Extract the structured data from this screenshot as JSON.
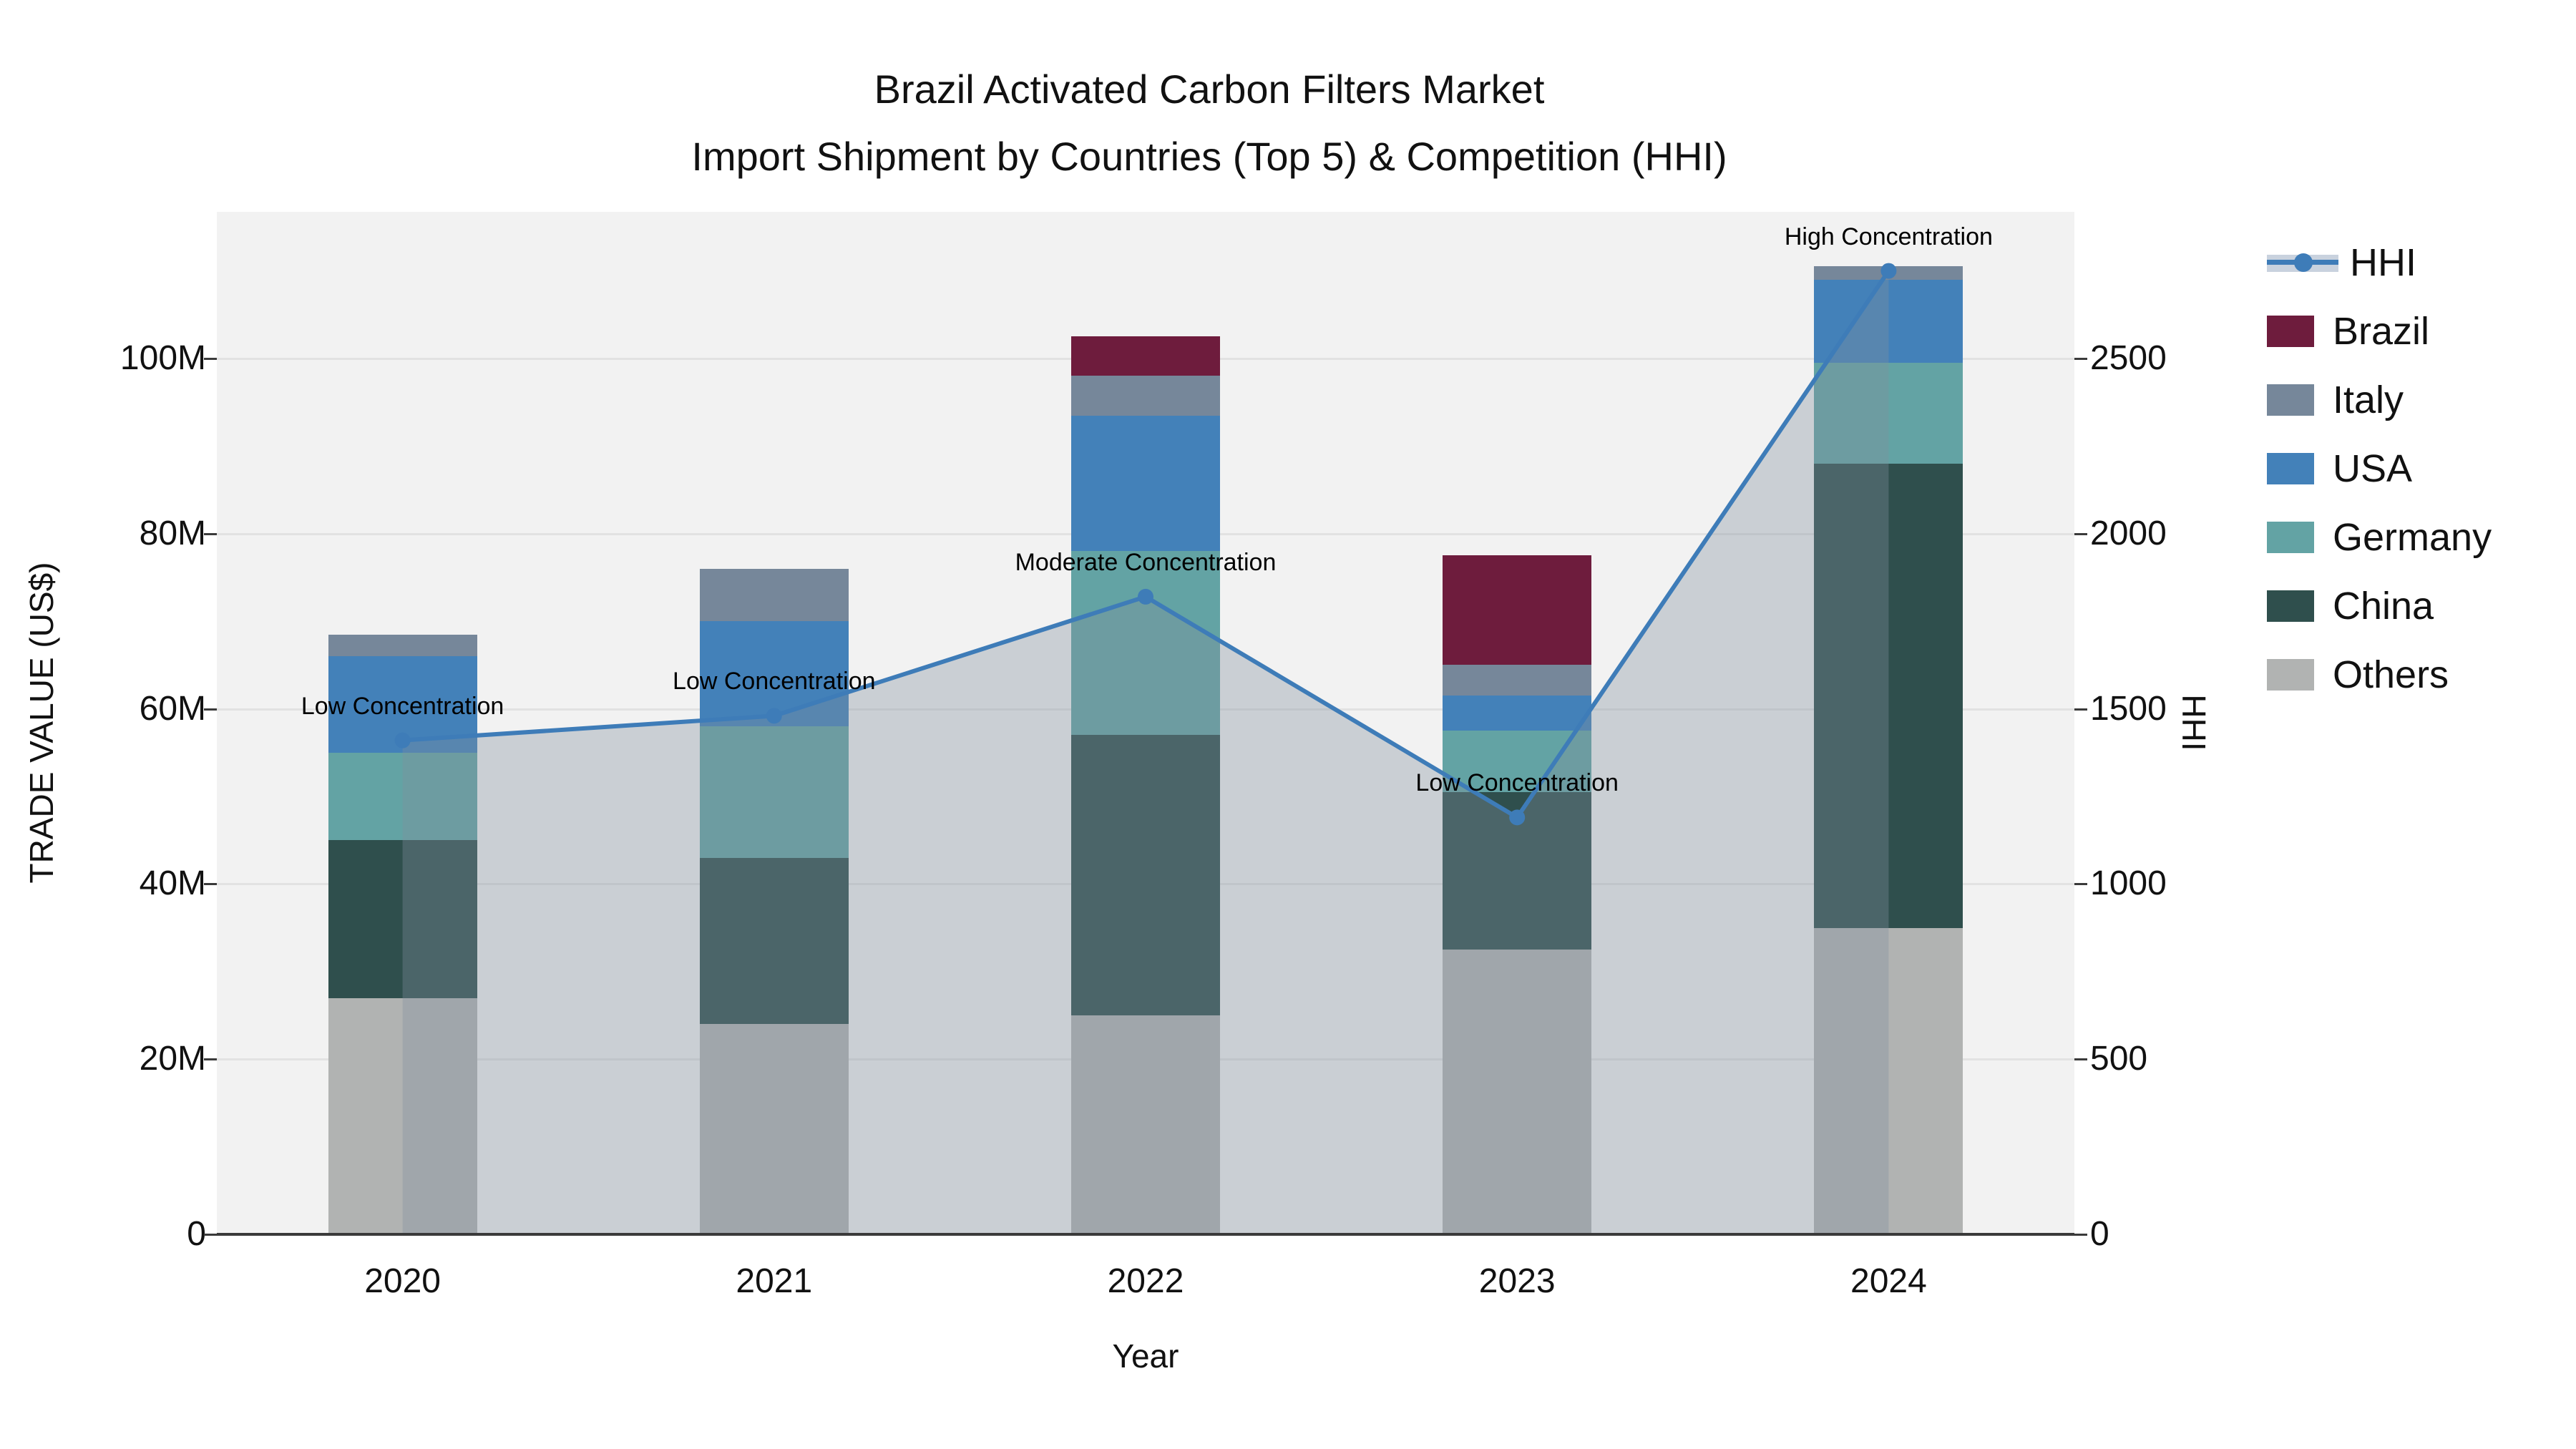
{
  "title": {
    "line1": "Brazil Activated Carbon Filters Market",
    "line2": "Import Shipment by Countries (Top 5) & Competition (HHI)"
  },
  "axes": {
    "y_left": {
      "label": "TRADE VALUE (US$)",
      "ticks": [
        {
          "value": 0,
          "text": "0"
        },
        {
          "value": 20,
          "text": "20M"
        },
        {
          "value": 40,
          "text": "40M"
        },
        {
          "value": 60,
          "text": "60M"
        },
        {
          "value": 80,
          "text": "80M"
        },
        {
          "value": 100,
          "text": "100M"
        }
      ]
    },
    "y_right": {
      "label": "HHI",
      "ticks": [
        {
          "value": 0,
          "text": "0"
        },
        {
          "value": 500,
          "text": "500"
        },
        {
          "value": 1000,
          "text": "1000"
        },
        {
          "value": 1500,
          "text": "1500"
        },
        {
          "value": 2000,
          "text": "2000"
        },
        {
          "value": 2500,
          "text": "2500"
        }
      ]
    },
    "x": {
      "label": "Year"
    }
  },
  "legend": {
    "items": [
      {
        "label": "HHI",
        "type": "line",
        "color": "#3e7cb8"
      },
      {
        "label": "Brazil",
        "type": "swatch",
        "color": "#6e1c3d"
      },
      {
        "label": "Italy",
        "type": "swatch",
        "color": "#76879a"
      },
      {
        "label": "USA",
        "type": "swatch",
        "color": "#4381b9"
      },
      {
        "label": "Germany",
        "type": "swatch",
        "color": "#63a3a4"
      },
      {
        "label": "China",
        "type": "swatch",
        "color": "#2f4f4d"
      },
      {
        "label": "Others",
        "type": "swatch",
        "color": "#b1b3b2"
      }
    ]
  },
  "chart_data": {
    "type": "bar",
    "subtype": "stacked-bars-with-line",
    "categories": [
      "2020",
      "2021",
      "2022",
      "2023",
      "2024"
    ],
    "value_unit": "million US$",
    "stack_order_bottom_to_top": [
      "Others",
      "China",
      "Germany",
      "USA",
      "Italy",
      "Brazil"
    ],
    "series": [
      {
        "name": "Others",
        "color": "#b1b3b2",
        "values": [
          27,
          24,
          25,
          32.5,
          35
        ]
      },
      {
        "name": "China",
        "color": "#2f4f4d",
        "values": [
          18,
          19,
          32,
          18,
          53
        ]
      },
      {
        "name": "Germany",
        "color": "#63a3a4",
        "values": [
          10,
          15,
          21,
          7,
          11.5
        ]
      },
      {
        "name": "USA",
        "color": "#4381b9",
        "values": [
          11,
          12,
          15.5,
          4,
          9.5
        ]
      },
      {
        "name": "Italy",
        "color": "#76879a",
        "values": [
          2.5,
          6,
          4.5,
          3.5,
          1.5
        ]
      },
      {
        "name": "Brazil",
        "color": "#6e1c3d",
        "values": [
          0,
          0,
          4.5,
          12.5,
          0
        ]
      }
    ],
    "bar_totals": [
      68.5,
      76,
      102.5,
      77.5,
      110.5
    ],
    "line_series": {
      "name": "HHI",
      "color": "#3e7cb8",
      "area_color": "rgba(128,142,158,0.35)",
      "values": [
        1410,
        1480,
        1820,
        1190,
        2750
      ]
    },
    "annotations": [
      {
        "category": "2020",
        "text": "Low Concentration"
      },
      {
        "category": "2021",
        "text": "Low Concentration"
      },
      {
        "category": "2022",
        "text": "Moderate Concentration"
      },
      {
        "category": "2023",
        "text": "Low Concentration"
      },
      {
        "category": "2024",
        "text": "High Concentration"
      }
    ],
    "ylim_left": [
      0,
      116.7
    ],
    "ylim_right": [
      0,
      2917
    ],
    "grid": "horizontal",
    "legend_position": "right"
  }
}
